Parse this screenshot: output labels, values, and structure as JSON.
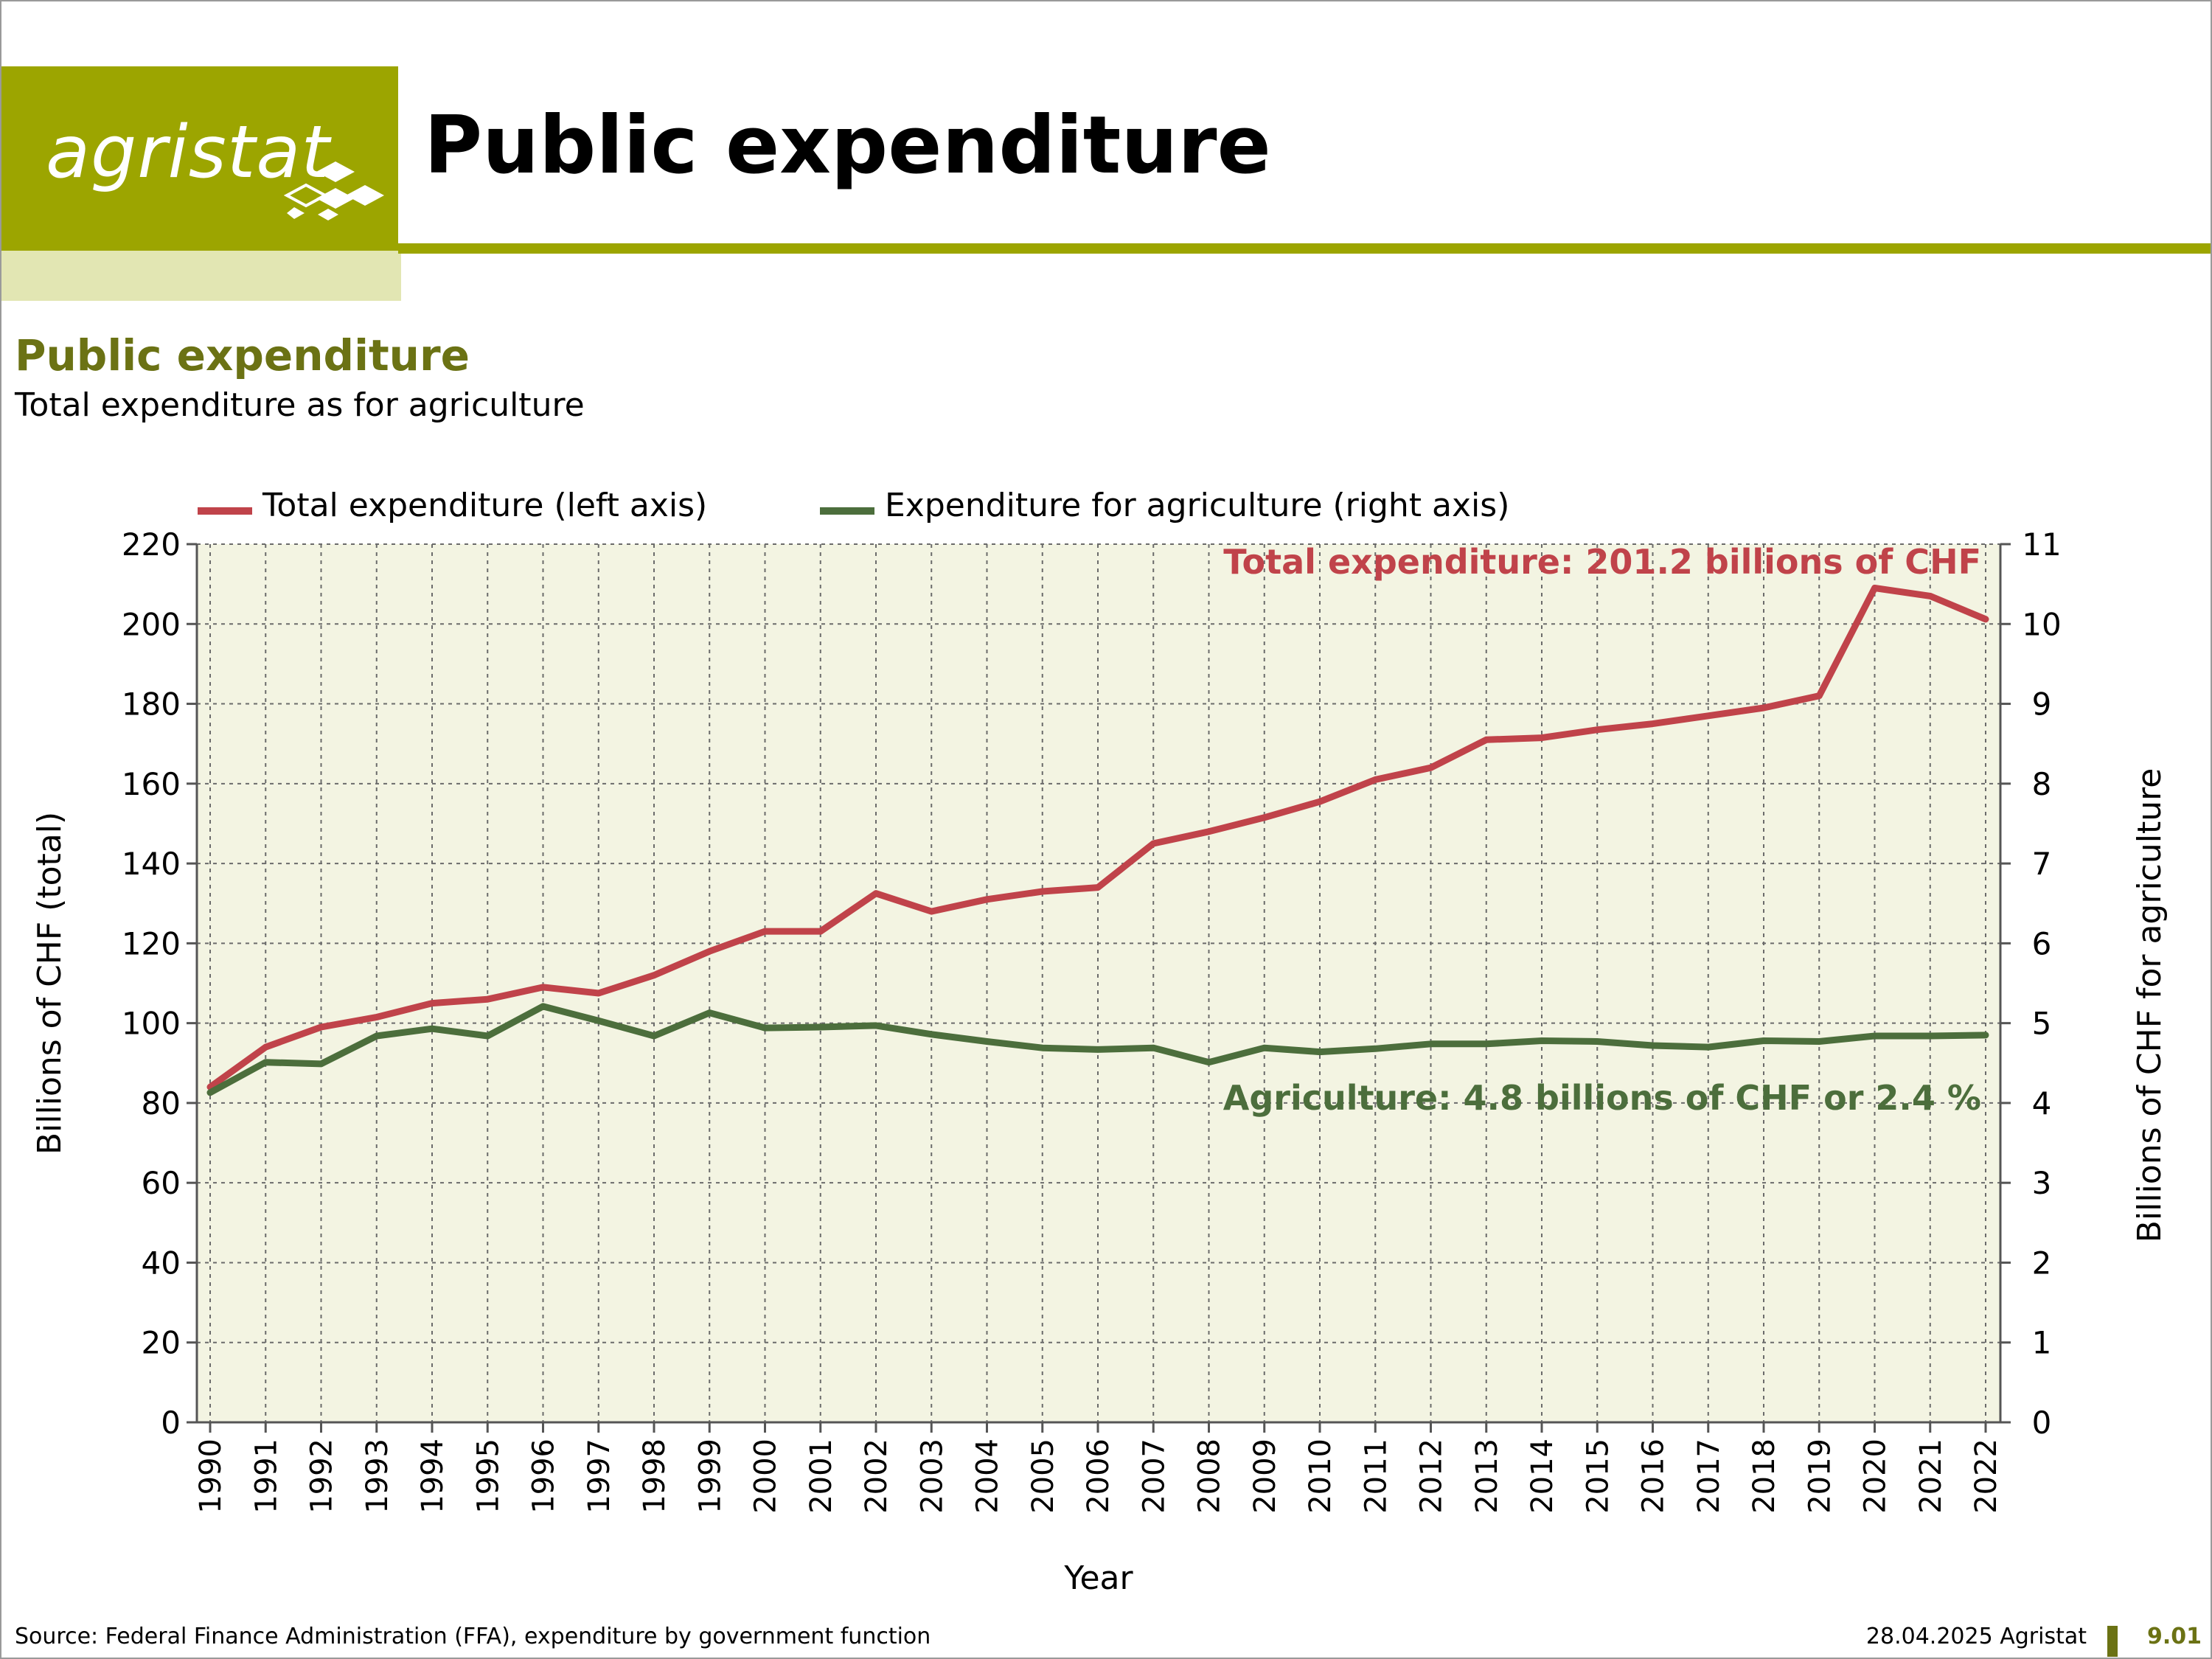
{
  "header": {
    "logo_text": "agristat",
    "page_title": "Public expenditure"
  },
  "colors": {
    "brand": "#9ca500",
    "title_green": "#6b7214",
    "total_series": "#c0434a",
    "agri_series": "#4c6e3c",
    "plot_bg": "#f3f4e2"
  },
  "chart_data": {
    "type": "line",
    "title": "Public expenditure",
    "subtitle": "Total expenditure as for agriculture",
    "xlabel": "Year",
    "ylabel_left": "Billions of CHF (total)",
    "ylabel_right": "Billions of CHF for agriculture",
    "ylim_left": [
      0,
      220
    ],
    "yticks_left": [
      0,
      20,
      40,
      60,
      80,
      100,
      120,
      140,
      160,
      180,
      200,
      220
    ],
    "ylim_right": [
      0,
      11
    ],
    "yticks_right": [
      0,
      1,
      2,
      3,
      4,
      5,
      6,
      7,
      8,
      9,
      10,
      11
    ],
    "grid": true,
    "legend_position": "top",
    "x": [
      1990,
      1991,
      1992,
      1993,
      1994,
      1995,
      1996,
      1997,
      1998,
      1999,
      2000,
      2001,
      2002,
      2003,
      2004,
      2005,
      2006,
      2007,
      2008,
      2009,
      2010,
      2011,
      2012,
      2013,
      2014,
      2015,
      2016,
      2017,
      2018,
      2019,
      2020,
      2021,
      2022
    ],
    "series": [
      {
        "name": "Total expenditure (left axis)",
        "axis": "left",
        "color": "#c0434a",
        "values": [
          84,
          94,
          99,
          101.5,
          105,
          106,
          109,
          107.5,
          112,
          118,
          123,
          123,
          132.5,
          128,
          131,
          133,
          134,
          145,
          148,
          151.5,
          155.5,
          161,
          164,
          171,
          171.5,
          173.5,
          175,
          177,
          179,
          182,
          209,
          207,
          201.2
        ]
      },
      {
        "name": "Expenditure for agriculture (right axis)",
        "axis": "right",
        "color": "#4c6e3c",
        "values": [
          4.13,
          4.51,
          4.49,
          4.84,
          4.93,
          4.84,
          5.21,
          5.03,
          4.84,
          5.13,
          4.94,
          4.95,
          4.97,
          4.86,
          4.77,
          4.69,
          4.67,
          4.69,
          4.51,
          4.69,
          4.64,
          4.68,
          4.74,
          4.74,
          4.78,
          4.77,
          4.72,
          4.7,
          4.78,
          4.77,
          4.84,
          4.84,
          4.85
        ]
      }
    ],
    "annotations": [
      {
        "text": "Total expenditure: 201.2 billions of CHF",
        "color": "#c0434a",
        "anchor": "top-right"
      },
      {
        "text": "Agriculture: 4.8 billions of CHF or 2.4 %",
        "color": "#4c6e3c",
        "anchor": "middle-right"
      }
    ]
  },
  "footer": {
    "source": "Source: Federal Finance Administration (FFA), expenditure by government function",
    "date": "28.04.2025 Agristat",
    "page": "9.01"
  }
}
